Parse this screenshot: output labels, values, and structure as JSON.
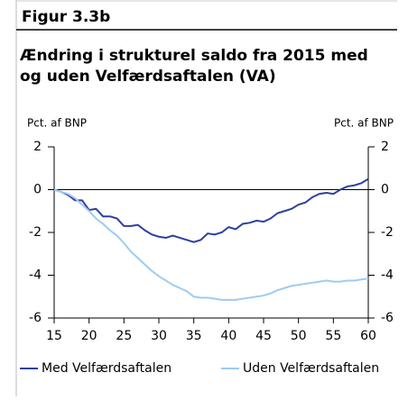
{
  "chart_data": {
    "type": "line",
    "figure_label": "Figur 3.3b",
    "title": "Ændring i strukturel saldo fra 2015 med og uden Velfærdsaftalen (VA)",
    "ylabel": "Pct. af BNP",
    "y2label": "Pct. af BNP",
    "x": [
      15,
      16,
      17,
      18,
      19,
      20,
      21,
      22,
      23,
      24,
      25,
      26,
      27,
      28,
      29,
      30,
      31,
      32,
      33,
      34,
      35,
      36,
      37,
      38,
      39,
      40,
      41,
      42,
      43,
      44,
      45,
      46,
      47,
      48,
      49,
      50,
      51,
      52,
      53,
      54,
      55,
      56,
      57,
      58,
      59,
      60
    ],
    "series": [
      {
        "name": "Med Velfærdsaftalen",
        "color": "#2e3f9e",
        "values": [
          0,
          -0.1,
          -0.25,
          -0.5,
          -0.5,
          -0.95,
          -0.9,
          -1.25,
          -1.25,
          -1.35,
          -1.7,
          -1.7,
          -1.65,
          -1.9,
          -2.1,
          -2.2,
          -2.25,
          -2.15,
          -2.25,
          -2.35,
          -2.45,
          -2.35,
          -2.05,
          -2.1,
          -2.0,
          -1.75,
          -1.85,
          -1.6,
          -1.55,
          -1.45,
          -1.5,
          -1.35,
          -1.1,
          -1.0,
          -0.9,
          -0.7,
          -0.6,
          -0.35,
          -0.2,
          -0.15,
          -0.2,
          0,
          0.15,
          0.2,
          0.3,
          0.5
        ]
      },
      {
        "name": "Uden Velfærdsaftalen",
        "color": "#9ecbf0",
        "values": [
          0,
          -0.1,
          -0.2,
          -0.4,
          -0.7,
          -1.0,
          -1.35,
          -1.6,
          -1.9,
          -2.15,
          -2.5,
          -2.9,
          -3.2,
          -3.5,
          -3.8,
          -4.05,
          -4.25,
          -4.45,
          -4.6,
          -4.75,
          -5.0,
          -5.05,
          -5.05,
          -5.1,
          -5.15,
          -5.15,
          -5.15,
          -5.1,
          -5.05,
          -5.0,
          -4.95,
          -4.85,
          -4.7,
          -4.6,
          -4.5,
          -4.45,
          -4.4,
          -4.35,
          -4.3,
          -4.25,
          -4.3,
          -4.3,
          -4.25,
          -4.25,
          -4.2,
          -4.15
        ]
      }
    ],
    "xlim": [
      15,
      60
    ],
    "xticks": [
      15,
      20,
      25,
      30,
      35,
      40,
      45,
      50,
      55,
      60
    ],
    "ylim": [
      -6,
      2
    ],
    "yticks": [
      -6,
      -4,
      -2,
      0,
      2
    ],
    "y2lim": [
      -6,
      2
    ],
    "y2ticks": [
      -6,
      -4,
      -2,
      0,
      2
    ]
  }
}
